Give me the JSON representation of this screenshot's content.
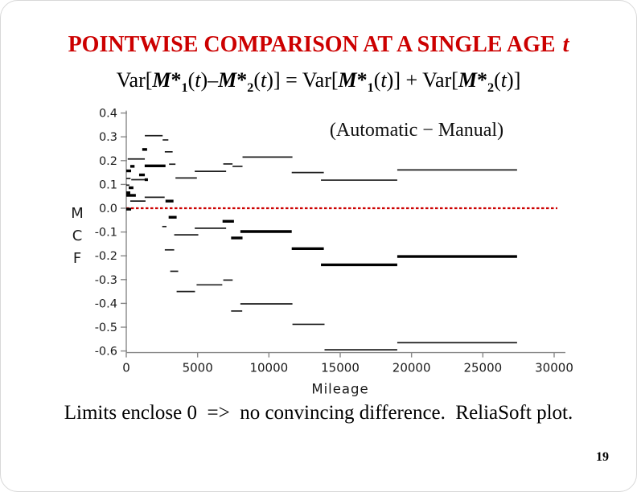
{
  "slide": {
    "title": {
      "text": "POINTWISE COMPARISON AT A SINGLE AGE",
      "italic_suffix": "t",
      "color": "#cc0000"
    },
    "formula_tokens": [
      [
        "Var[",
        "n"
      ],
      [
        "M",
        "bi"
      ],
      [
        "*",
        "b"
      ],
      [
        "1",
        "sub"
      ],
      [
        "(",
        "n"
      ],
      [
        "t",
        "i"
      ],
      [
        ")",
        "n"
      ],
      [
        "–",
        "n"
      ],
      [
        "M",
        "bi"
      ],
      [
        "*",
        "b"
      ],
      [
        "2",
        "sub"
      ],
      [
        "(",
        "n"
      ],
      [
        "t",
        "i"
      ],
      [
        ")",
        "n"
      ],
      [
        "] = Var[",
        "n"
      ],
      [
        "M",
        "bi"
      ],
      [
        "*",
        "b"
      ],
      [
        "1",
        "sub"
      ],
      [
        "(",
        "n"
      ],
      [
        "t",
        "i"
      ],
      [
        ")",
        "n"
      ],
      [
        "] + Var[",
        "n"
      ],
      [
        "M",
        "bi"
      ],
      [
        "*",
        "b"
      ],
      [
        "2",
        "sub"
      ],
      [
        "(",
        "n"
      ],
      [
        "t",
        "i"
      ],
      [
        ")",
        "n"
      ],
      [
        "]",
        "n"
      ]
    ],
    "footer_text": "Limits enclose 0  =>  no convincing difference.  ReliaSoft plot.",
    "page_number": "19"
  },
  "chart_data": {
    "type": "line",
    "subtype": "step-function confidence bounds of MCF difference",
    "annotation": "(Automatic − Manual)",
    "xlabel": "Mileage",
    "ylabel": "MCF",
    "ylabel_letters": [
      "M",
      "C",
      "F"
    ],
    "xlim": [
      0,
      30000
    ],
    "ylim": [
      -0.6,
      0.4
    ],
    "x_ticks": [
      0,
      5000,
      10000,
      15000,
      20000,
      25000,
      30000
    ],
    "y_tick_labels": [
      "0.4",
      "0.3",
      "0.2",
      "0.1",
      "0.0",
      "-0.1",
      "-0.2",
      "-0.3",
      "-0.4",
      "-0.5",
      "-0.6"
    ],
    "grid": false,
    "legend": "none",
    "axis_color": "#888888",
    "zero_line": {
      "y": 0.0,
      "color": "#cc0000",
      "style": "dashed"
    },
    "segments_note": "horizontal step segments [x_start_mileage, x_end_mileage, value, weight]; weight 2 = thick estimate steps, 1 = thin confidence-limit steps",
    "segments": [
      [
        100,
        1300,
        0.207,
        1
      ],
      [
        1300,
        2550,
        0.305,
        1
      ],
      [
        2550,
        2950,
        0.287,
        1
      ],
      [
        2700,
        3250,
        0.237,
        1
      ],
      [
        3000,
        3450,
        0.185,
        1
      ],
      [
        3450,
        4950,
        0.127,
        1
      ],
      [
        4800,
        7000,
        0.155,
        1
      ],
      [
        6800,
        7450,
        0.186,
        1
      ],
      [
        7450,
        8150,
        0.176,
        1
      ],
      [
        8150,
        11650,
        0.215,
        1
      ],
      [
        11600,
        13850,
        0.15,
        1
      ],
      [
        13650,
        19000,
        0.118,
        1
      ],
      [
        19000,
        27400,
        0.161,
        1
      ],
      [
        0,
        300,
        0.125,
        1
      ],
      [
        0,
        220,
        0.097,
        1
      ],
      [
        350,
        1300,
        0.12,
        1
      ],
      [
        280,
        1350,
        0.03,
        1
      ],
      [
        1290,
        2690,
        0.046,
        1
      ],
      [
        0,
        340,
        0.157,
        2
      ],
      [
        280,
        580,
        0.176,
        2
      ],
      [
        1120,
        1460,
        0.247,
        2
      ],
      [
        900,
        1300,
        0.14,
        2
      ],
      [
        1290,
        2750,
        0.178,
        2
      ],
      [
        1290,
        1520,
        0.12,
        2
      ],
      [
        170,
        500,
        0.086,
        2
      ],
      [
        0,
        280,
        0.065,
        2
      ],
      [
        0,
        670,
        0.054,
        2
      ],
      [
        2750,
        3310,
        0.03,
        2
      ],
      [
        0,
        340,
        -0.004,
        2
      ],
      [
        2970,
        3530,
        -0.038,
        2
      ],
      [
        6750,
        7550,
        -0.055,
        2
      ],
      [
        7350,
        8150,
        -0.125,
        2
      ],
      [
        8000,
        11600,
        -0.098,
        2
      ],
      [
        11600,
        13850,
        -0.17,
        2
      ],
      [
        13650,
        19000,
        -0.238,
        2
      ],
      [
        19000,
        27400,
        -0.203,
        2
      ],
      [
        2520,
        2820,
        -0.077,
        1
      ],
      [
        3360,
        5050,
        -0.112,
        1
      ],
      [
        4800,
        7000,
        -0.084,
        1
      ],
      [
        2700,
        3360,
        -0.175,
        1
      ],
      [
        3080,
        3640,
        -0.265,
        1
      ],
      [
        3530,
        4820,
        -0.35,
        1
      ],
      [
        4930,
        6730,
        -0.322,
        1
      ],
      [
        6800,
        7460,
        -0.302,
        1
      ],
      [
        7350,
        8130,
        -0.432,
        1
      ],
      [
        8000,
        11650,
        -0.402,
        1
      ],
      [
        11650,
        13900,
        -0.488,
        1
      ],
      [
        13900,
        19000,
        -0.595,
        1
      ],
      [
        19000,
        27400,
        -0.565,
        1
      ]
    ]
  }
}
